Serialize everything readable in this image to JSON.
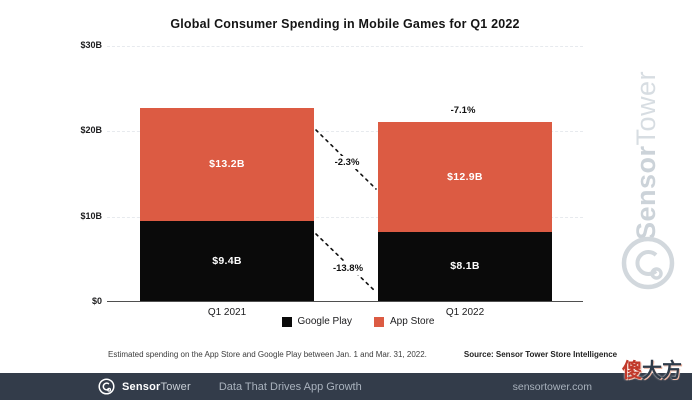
{
  "chart_data": {
    "type": "bar",
    "stacked": true,
    "title": "Global Consumer Spending in Mobile Games for Q1 2022",
    "categories": [
      "Q1 2021",
      "Q1 2022"
    ],
    "series": [
      {
        "name": "Google Play",
        "color": "#0a0a0a",
        "values": [
          9.4,
          8.1
        ],
        "labels": [
          "$9.4B",
          "$8.1B"
        ]
      },
      {
        "name": "App Store",
        "color": "#DC5B43",
        "values": [
          13.2,
          12.9
        ],
        "labels": [
          "$13.2B",
          "$12.9B"
        ]
      }
    ],
    "y_ticks": [
      {
        "value": 0,
        "label": "$0"
      },
      {
        "value": 10,
        "label": "$10B"
      },
      {
        "value": 20,
        "label": "$20B"
      },
      {
        "value": 30,
        "label": "$30B"
      }
    ],
    "ylim": [
      0,
      30
    ],
    "grid": "horizontal-dashed",
    "legend_position": "bottom",
    "annotations": [
      {
        "id": "app-store-change",
        "label": "-2.3%"
      },
      {
        "id": "google-play-change",
        "label": "-13.8%"
      },
      {
        "id": "total-change",
        "label": "-7.1%"
      }
    ]
  },
  "footnote": {
    "text": "Estimated spending on the App Store and Google Play between Jan. 1 and Mar. 31, 2022.",
    "source": "Source: Sensor Tower Store Intelligence"
  },
  "footer": {
    "brand_bold": "Sensor",
    "brand_light": "Tower",
    "tagline": "Data That Drives App Growth",
    "url": "sensortower.com",
    "background": "#333C4A"
  },
  "watermarks": {
    "side_bold": "Sensor",
    "side_light": "Tower",
    "corner_part1": "傻",
    "corner_part2": "大方"
  },
  "colors": {
    "app_store": "#DC5B43",
    "google_play": "#0a0a0a",
    "footer_bar": "#333C4A",
    "watermark_gray": "#d2d8dd"
  }
}
